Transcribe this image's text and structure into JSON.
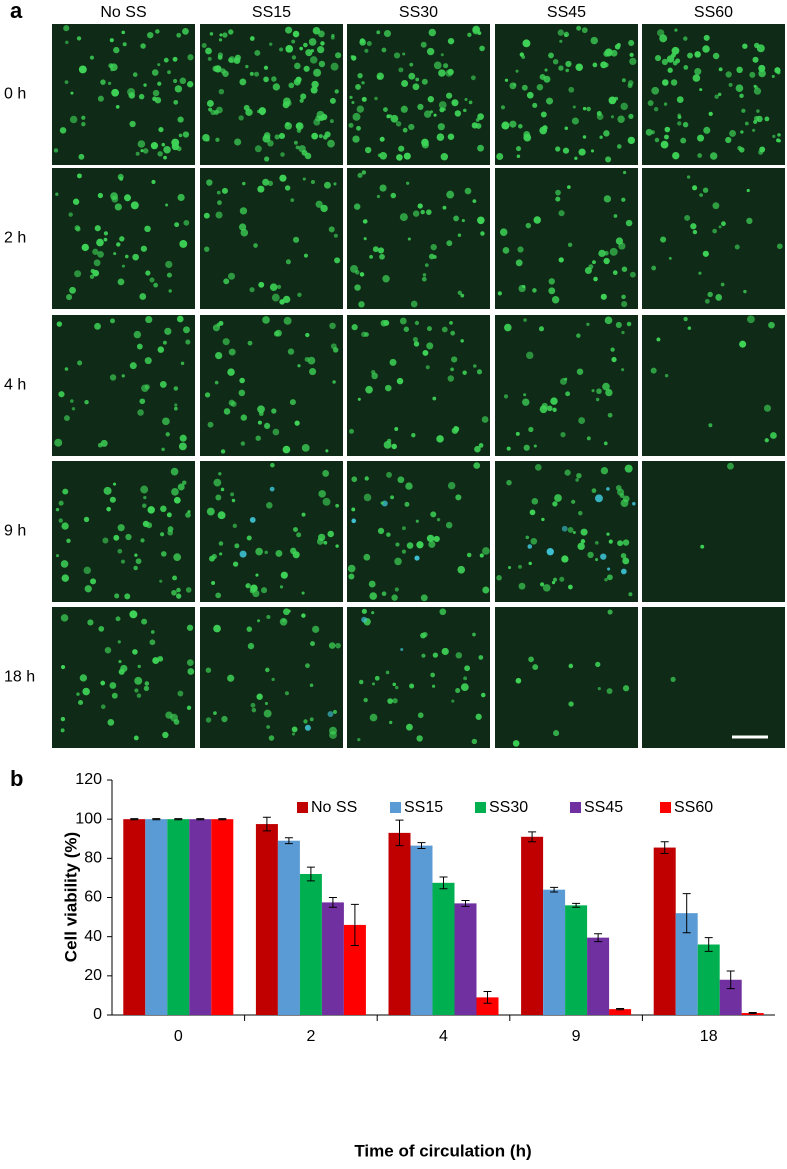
{
  "panel_a": {
    "label": "a",
    "columns": [
      "No SS",
      "SS15",
      "SS30",
      "SS45",
      "SS60"
    ],
    "rows": [
      "0 h",
      "2 h",
      "4 h",
      "9 h",
      "18 h"
    ]
  },
  "panel_b": {
    "label": "b"
  },
  "chart_data": {
    "type": "bar",
    "categories": [
      "0",
      "2",
      "4",
      "9",
      "18"
    ],
    "x_label": "Time of circulation (h)",
    "y_label": "Cell viability (%)",
    "ylim": [
      0,
      120
    ],
    "yticks": [
      0,
      20,
      40,
      60,
      80,
      100,
      120
    ],
    "legend": "top",
    "series": [
      {
        "name": "No SS",
        "color": "#c00000",
        "values": [
          100,
          97.5,
          93,
          91,
          85.5
        ],
        "errors": [
          0.3,
          3.5,
          6.5,
          2.5,
          3
        ]
      },
      {
        "name": "SS15",
        "color": "#5b9bd5",
        "values": [
          100,
          89,
          86.5,
          64,
          52
        ],
        "errors": [
          0.3,
          1.5,
          1.5,
          1.2,
          10
        ]
      },
      {
        "name": "SS30",
        "color": "#00b050",
        "values": [
          100,
          72,
          67.5,
          56,
          36
        ],
        "errors": [
          0.3,
          3.5,
          3,
          1,
          3.5
        ]
      },
      {
        "name": "SS45",
        "color": "#7030a0",
        "values": [
          100,
          57.5,
          57,
          39.5,
          18
        ],
        "errors": [
          0.3,
          2.5,
          1.5,
          2,
          4.5
        ]
      },
      {
        "name": "SS60",
        "color": "#ff0000",
        "values": [
          100,
          46,
          9,
          3,
          1
        ],
        "errors": [
          0.3,
          10.5,
          3,
          0.3,
          0.3
        ]
      }
    ]
  }
}
